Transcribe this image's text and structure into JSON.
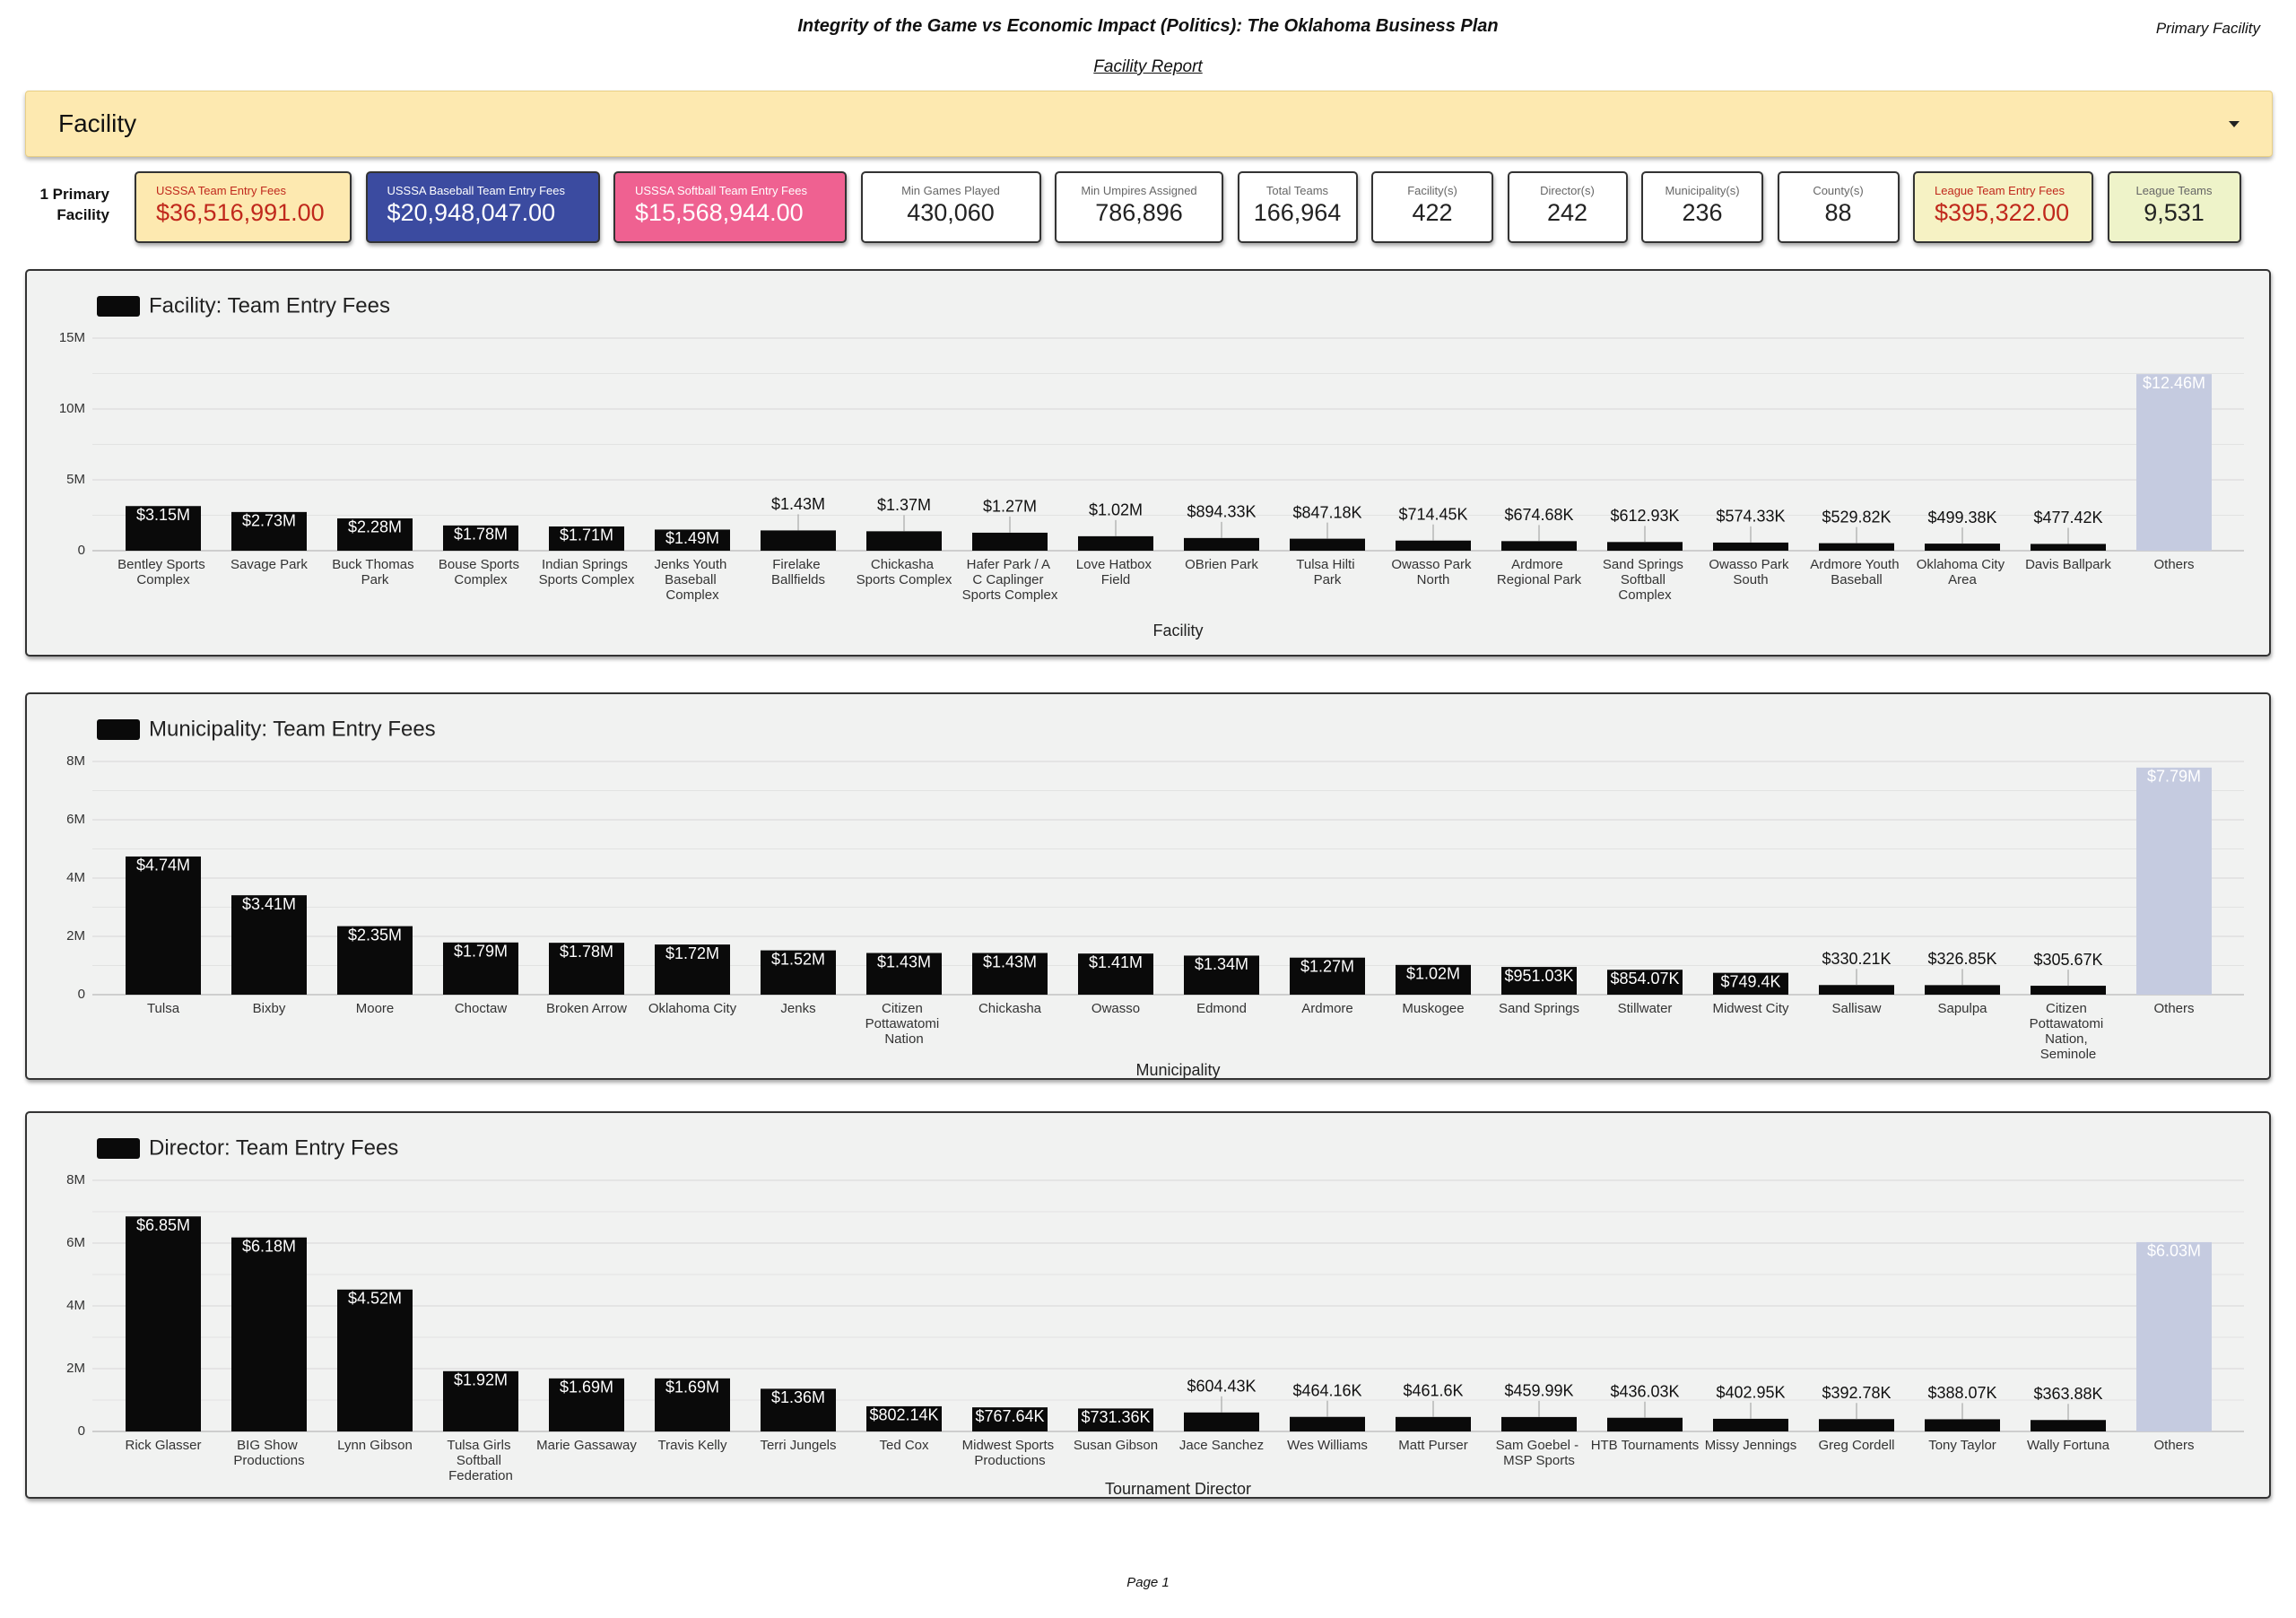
{
  "header": {
    "title": "Integrity of the Game vs Economic Impact (Politics): The Oklahoma Business Plan",
    "subtitle": "Facility Report",
    "right": "Primary Facility"
  },
  "filter": {
    "label": "Facility"
  },
  "kpi_side_label": "1 Primary Facility",
  "kpis": [
    {
      "label": "USSSA Team Entry Fees",
      "value": "$36,516,991.00"
    },
    {
      "label": "USSSA Baseball Team Entry Fees",
      "value": "$20,948,047.00"
    },
    {
      "label": "USSSA Softball Team Entry Fees",
      "value": "$15,568,944.00"
    },
    {
      "label": "Min Games Played",
      "value": "430,060"
    },
    {
      "label": "Min Umpires Assigned",
      "value": "786,896"
    },
    {
      "label": "Total Teams",
      "value": "166,964"
    },
    {
      "label": "Facility(s)",
      "value": "422"
    },
    {
      "label": "Director(s)",
      "value": "242"
    },
    {
      "label": "Municipality(s)",
      "value": "236"
    },
    {
      "label": "County(s)",
      "value": "88"
    },
    {
      "label": "League Team Entry Fees",
      "value": "$395,322.00"
    },
    {
      "label": "League Teams",
      "value": "9,531"
    }
  ],
  "chart_data": [
    {
      "type": "bar",
      "x_label": "Facility",
      "categories": [
        "Bentley Sports Complex",
        "Savage Park",
        "Buck Thomas Park",
        "Bouse Sports Complex",
        "Indian Springs Sports Complex",
        "Jenks Youth Baseball Complex",
        "Firelake Ballfields",
        "Chickasha Sports Complex",
        "Hafer Park / A C Caplinger Sports Complex",
        "Love Hatbox Field",
        "OBrien Park",
        "Tulsa Hilti Park",
        "Owasso Park North",
        "Ardmore Regional Park",
        "Sand Springs Softball Complex",
        "Owasso Park South",
        "Ardmore Youth Baseball",
        "Oklahoma City Area",
        "Davis Ballpark",
        "Others"
      ],
      "series": [
        {
          "name": "Facility: Team Entry Fees",
          "color": "#0a0a0a",
          "values": [
            3150000,
            2730000,
            2280000,
            1780000,
            1710000,
            1490000,
            1430000,
            1370000,
            1270000,
            1020000,
            894330,
            847180,
            714450,
            674680,
            612930,
            574330,
            529820,
            499380,
            477420,
            12460000
          ],
          "value_labels": [
            "$3.15M",
            "$2.73M",
            "$2.28M",
            "$1.78M",
            "$1.71M",
            "$1.49M",
            "$1.43M",
            "$1.37M",
            "$1.27M",
            "$1.02M",
            "$894.33K",
            "$847.18K",
            "$714.45K",
            "$674.68K",
            "$612.93K",
            "$574.33K",
            "$529.82K",
            "$499.38K",
            "$477.42K",
            "$12.46M"
          ],
          "bar_colors": [
            "#0a0a0a",
            "#0a0a0a",
            "#0a0a0a",
            "#0a0a0a",
            "#0a0a0a",
            "#0a0a0a",
            "#0a0a0a",
            "#0a0a0a",
            "#0a0a0a",
            "#0a0a0a",
            "#0a0a0a",
            "#0a0a0a",
            "#0a0a0a",
            "#0a0a0a",
            "#0a0a0a",
            "#0a0a0a",
            "#0a0a0a",
            "#0a0a0a",
            "#0a0a0a",
            "#c5cbe0"
          ]
        }
      ],
      "ylim": [
        0,
        15000000
      ],
      "yticks": [
        0,
        {
          "value": 5000000,
          "label": "5M"
        },
        {
          "value": 10000000,
          "label": "10M"
        },
        {
          "value": 15000000,
          "label": "15M"
        }
      ],
      "minor_yticks": [
        2500000,
        7500000,
        12500000
      ],
      "grid": true
    },
    {
      "type": "bar",
      "x_label": "Municipality",
      "categories": [
        "Tulsa",
        "Bixby",
        "Moore",
        "Choctaw",
        "Broken Arrow",
        "Oklahoma City",
        "Jenks",
        "Citizen Pottawatomi Nation",
        "Chickasha",
        "Owasso",
        "Edmond",
        "Ardmore",
        "Muskogee",
        "Sand Springs",
        "Stillwater",
        "Midwest City",
        "Sallisaw",
        "Sapulpa",
        "Citizen Pottawatomi Nation, Seminole",
        "Others"
      ],
      "series": [
        {
          "name": "Municipality: Team Entry Fees",
          "color": "#0a0a0a",
          "values": [
            4740000,
            3410000,
            2350000,
            1790000,
            1780000,
            1720000,
            1520000,
            1430000,
            1430000,
            1410000,
            1340000,
            1270000,
            1020000,
            951030,
            854070,
            749400,
            330210,
            326850,
            305670,
            7790000
          ],
          "value_labels": [
            "$4.74M",
            "$3.41M",
            "$2.35M",
            "$1.79M",
            "$1.78M",
            "$1.72M",
            "$1.52M",
            "$1.43M",
            "$1.43M",
            "$1.41M",
            "$1.34M",
            "$1.27M",
            "$1.02M",
            "$951.03K",
            "$854.07K",
            "$749.4K",
            "$330.21K",
            "$326.85K",
            "$305.67K",
            "$7.79M"
          ],
          "bar_colors": [
            "#0a0a0a",
            "#0a0a0a",
            "#0a0a0a",
            "#0a0a0a",
            "#0a0a0a",
            "#0a0a0a",
            "#0a0a0a",
            "#0a0a0a",
            "#0a0a0a",
            "#0a0a0a",
            "#0a0a0a",
            "#0a0a0a",
            "#0a0a0a",
            "#0a0a0a",
            "#0a0a0a",
            "#0a0a0a",
            "#0a0a0a",
            "#0a0a0a",
            "#0a0a0a",
            "#c5cbe0"
          ]
        }
      ],
      "ylim": [
        0,
        8000000
      ],
      "yticks": [
        0,
        {
          "value": 2000000,
          "label": "2M"
        },
        {
          "value": 4000000,
          "label": "4M"
        },
        {
          "value": 6000000,
          "label": "6M"
        },
        {
          "value": 8000000,
          "label": "8M"
        }
      ],
      "minor_yticks": [
        1000000,
        3000000,
        5000000,
        7000000
      ],
      "grid": true
    },
    {
      "type": "bar",
      "x_label": "Tournament Director",
      "categories": [
        "Rick Glasser",
        "BIG Show Productions",
        "Lynn Gibson",
        "Tulsa Girls Softball Federation",
        "Marie Gassaway",
        "Travis Kelly",
        "Terri Jungels",
        "Ted Cox",
        "Midwest Sports Productions",
        "Susan Gibson",
        "Jace Sanchez",
        "Wes Williams",
        "Matt Purser",
        "Sam Goebel - MSP Sports",
        "HTB Tournaments",
        "Missy Jennings",
        "Greg Cordell",
        "Tony Taylor",
        "Wally Fortuna",
        "Others"
      ],
      "series": [
        {
          "name": "Director: Team Entry Fees",
          "color": "#0a0a0a",
          "values": [
            6850000,
            6180000,
            4520000,
            1920000,
            1690000,
            1690000,
            1360000,
            802140,
            767640,
            731360,
            604430,
            464160,
            461600,
            459990,
            436030,
            402950,
            392780,
            388070,
            363880,
            6030000
          ],
          "value_labels": [
            "$6.85M",
            "$6.18M",
            "$4.52M",
            "$1.92M",
            "$1.69M",
            "$1.69M",
            "$1.36M",
            "$802.14K",
            "$767.64K",
            "$731.36K",
            "$604.43K",
            "$464.16K",
            "$461.6K",
            "$459.99K",
            "$436.03K",
            "$402.95K",
            "$392.78K",
            "$388.07K",
            "$363.88K",
            "$6.03M"
          ],
          "bar_colors": [
            "#0a0a0a",
            "#0a0a0a",
            "#0a0a0a",
            "#0a0a0a",
            "#0a0a0a",
            "#0a0a0a",
            "#0a0a0a",
            "#0a0a0a",
            "#0a0a0a",
            "#0a0a0a",
            "#0a0a0a",
            "#0a0a0a",
            "#0a0a0a",
            "#0a0a0a",
            "#0a0a0a",
            "#0a0a0a",
            "#0a0a0a",
            "#0a0a0a",
            "#0a0a0a",
            "#c5cbe0"
          ]
        }
      ],
      "ylim": [
        0,
        8000000
      ],
      "yticks": [
        0,
        {
          "value": 2000000,
          "label": "2M"
        },
        {
          "value": 4000000,
          "label": "4M"
        },
        {
          "value": 6000000,
          "label": "6M"
        },
        {
          "value": 8000000,
          "label": "8M"
        }
      ],
      "minor_yticks": [
        1000000,
        3000000,
        5000000,
        7000000
      ],
      "grid": true
    }
  ]
}
